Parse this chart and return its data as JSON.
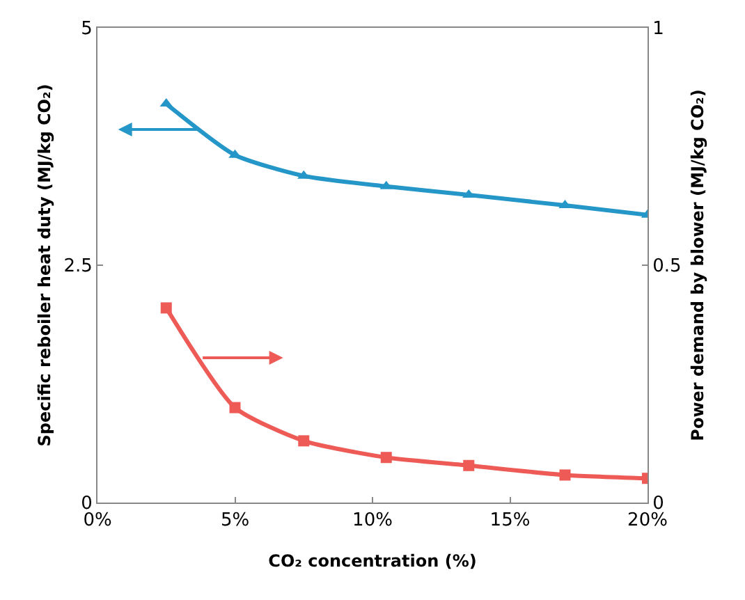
{
  "chart_data": {
    "type": "line",
    "xlabel": "CO₂ concentration (%)",
    "ylabel": "Specific reboiler heat duty (MJ/kg CO₂)",
    "y2label": "Power demand by blower (MJ/kg CO₂)",
    "xlim": [
      0,
      20
    ],
    "xticks": [
      {
        "value": 0,
        "label": "0%"
      },
      {
        "value": 5,
        "label": "5%"
      },
      {
        "value": 10,
        "label": "10%"
      },
      {
        "value": 15,
        "label": "15%"
      },
      {
        "value": 20,
        "label": "20%"
      }
    ],
    "ylim": [
      0,
      5
    ],
    "yticks": [
      0,
      2.5,
      5
    ],
    "y2lim": [
      0,
      1
    ],
    "y2ticks": [
      0,
      0.5,
      1
    ],
    "grid": false,
    "line_style": "solid",
    "series": [
      {
        "color": "#2596c8",
        "marker": "triangle",
        "x": [
          2.5,
          5,
          7.5,
          10.5,
          13.5,
          17,
          20
        ],
        "values": [
          4.2,
          3.66,
          3.44,
          3.33,
          3.24,
          3.13,
          3.03
        ]
      },
      {
        "color": "#ee5a55",
        "marker": "square",
        "axis": "y2",
        "x": [
          2.5,
          5,
          7.5,
          10.5,
          13.5,
          17,
          20
        ],
        "values": [
          0.41,
          0.2,
          0.13,
          0.095,
          0.078,
          0.058,
          0.051
        ]
      }
    ]
  }
}
